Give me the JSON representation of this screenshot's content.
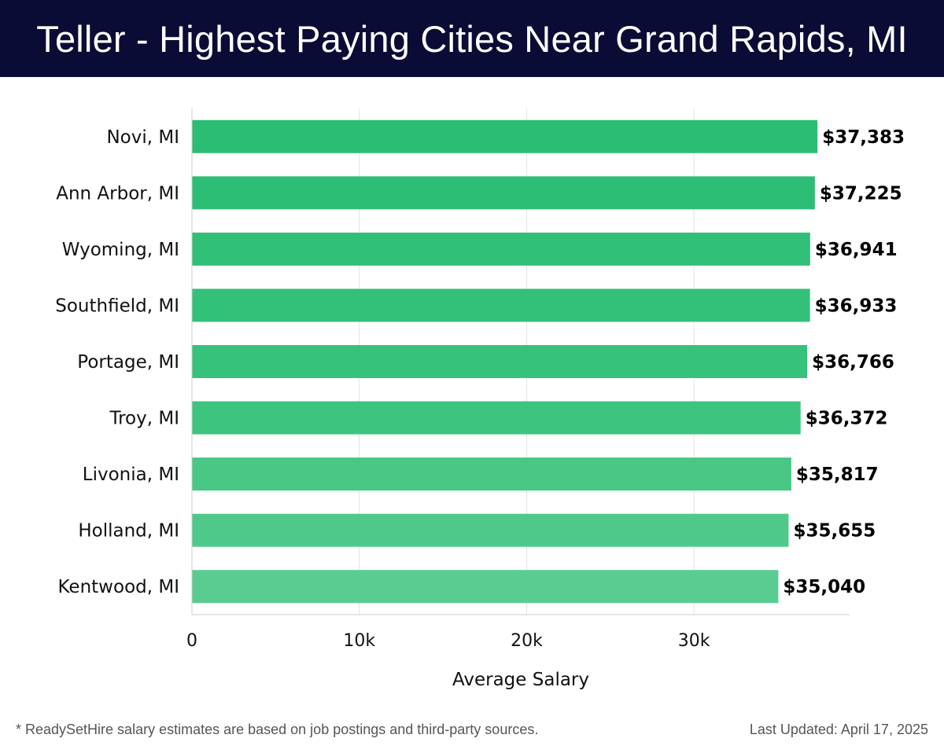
{
  "header": {
    "title": "Teller - Highest Paying Cities Near Grand Rapids, MI"
  },
  "chart_data": {
    "type": "bar",
    "orientation": "horizontal",
    "title": "Teller - Highest Paying Cities Near Grand Rapids, MI",
    "xlabel": "Average Salary",
    "ylabel": "",
    "categories": [
      "Novi, MI",
      "Ann Arbor, MI",
      "Wyoming, MI",
      "Southfield, MI",
      "Portage, MI",
      "Troy, MI",
      "Livonia, MI",
      "Holland, MI",
      "Kentwood, MI"
    ],
    "values": [
      37383,
      37225,
      36941,
      36933,
      36766,
      36372,
      35817,
      35655,
      35040
    ],
    "value_labels": [
      "$37,383",
      "$37,225",
      "$36,941",
      "$36,933",
      "$36,766",
      "$36,372",
      "$35,817",
      "$35,655",
      "$35,040"
    ],
    "xlim": [
      0,
      39300
    ],
    "x_ticks": [
      0,
      10000,
      20000,
      30000
    ],
    "x_tick_labels": [
      "0",
      "10k",
      "20k",
      "30k"
    ],
    "grid": true,
    "bar_colors": [
      "#2bbd73",
      "#2dbe75",
      "#30bf77",
      "#33c079",
      "#37c27b",
      "#3dc47f",
      "#48c785",
      "#4fc98a",
      "#59cc92"
    ]
  },
  "footer": {
    "note": "* ReadySetHire salary estimates are based on job postings and third-party sources.",
    "updated": "Last Updated: April 17, 2025"
  }
}
